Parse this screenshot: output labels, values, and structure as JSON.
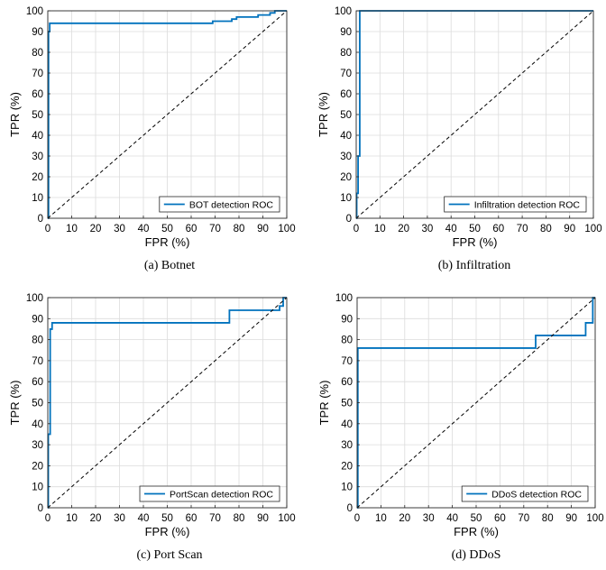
{
  "chart_data": [
    {
      "type": "line",
      "caption": "(a) Botnet",
      "xlabel": "FPR (%)",
      "ylabel": "TPR (%)",
      "xlim": [
        0,
        100
      ],
      "ylim": [
        0,
        100
      ],
      "xticks": [
        0,
        10,
        20,
        30,
        40,
        50,
        60,
        70,
        80,
        90,
        100
      ],
      "yticks": [
        0,
        10,
        20,
        30,
        40,
        50,
        60,
        70,
        80,
        90,
        100
      ],
      "grid": true,
      "legend_position": "bottom-right",
      "series": [
        {
          "name": "BOT detection ROC",
          "color": "#0072bd",
          "x": [
            0,
            0.3,
            0.3,
            0.8,
            0.8,
            69,
            69,
            77,
            77,
            79,
            79,
            88,
            88,
            93,
            93,
            95,
            95,
            100
          ],
          "y": [
            0,
            0,
            90,
            90,
            94,
            94,
            95,
            95,
            96,
            96,
            97,
            97,
            98,
            98,
            99,
            99,
            100,
            100
          ]
        },
        {
          "name": "",
          "color": "#000000",
          "dashed": true,
          "x": [
            0,
            100
          ],
          "y": [
            0,
            100
          ]
        }
      ]
    },
    {
      "type": "line",
      "caption": "(b) Infiltration",
      "xlabel": "FPR (%)",
      "ylabel": "TPR (%)",
      "xlim": [
        0,
        100
      ],
      "ylim": [
        0,
        100
      ],
      "xticks": [
        0,
        10,
        20,
        30,
        40,
        50,
        60,
        70,
        80,
        90,
        100
      ],
      "yticks": [
        0,
        10,
        20,
        30,
        40,
        50,
        60,
        70,
        80,
        90,
        100
      ],
      "grid": true,
      "legend_position": "bottom-right",
      "series": [
        {
          "name": "Infiltration detection ROC",
          "color": "#0072bd",
          "x": [
            0,
            0.2,
            0.2,
            0.8,
            0.8,
            1.5,
            1.5,
            100
          ],
          "y": [
            0,
            0,
            12,
            12,
            30,
            30,
            100,
            100
          ]
        },
        {
          "name": "",
          "color": "#000000",
          "dashed": true,
          "x": [
            0,
            100
          ],
          "y": [
            0,
            100
          ]
        }
      ]
    },
    {
      "type": "line",
      "caption": "(c) Port Scan",
      "xlabel": "FPR (%)",
      "ylabel": "TPR (%)",
      "xlim": [
        0,
        100
      ],
      "ylim": [
        0,
        100
      ],
      "xticks": [
        0,
        10,
        20,
        30,
        40,
        50,
        60,
        70,
        80,
        90,
        100
      ],
      "yticks": [
        0,
        10,
        20,
        30,
        40,
        50,
        60,
        70,
        80,
        90,
        100
      ],
      "grid": true,
      "legend_position": "bottom-right",
      "series": [
        {
          "name": "PortScan detection ROC",
          "color": "#0072bd",
          "x": [
            0,
            0.2,
            0.2,
            1,
            1,
            1.8,
            1.8,
            76,
            76,
            97,
            97,
            98.5,
            98.5,
            100
          ],
          "y": [
            0,
            0,
            35,
            35,
            85,
            85,
            88,
            88,
            94,
            94,
            96,
            96,
            100,
            100
          ]
        },
        {
          "name": "",
          "color": "#000000",
          "dashed": true,
          "x": [
            0,
            100
          ],
          "y": [
            0,
            100
          ]
        }
      ]
    },
    {
      "type": "line",
      "caption": "(d) DDoS",
      "xlabel": "FPR (%)",
      "ylabel": "TPR (%)",
      "xlim": [
        0,
        100
      ],
      "ylim": [
        0,
        100
      ],
      "xticks": [
        0,
        10,
        20,
        30,
        40,
        50,
        60,
        70,
        80,
        90,
        100
      ],
      "yticks": [
        0,
        10,
        20,
        30,
        40,
        50,
        60,
        70,
        80,
        90,
        100
      ],
      "grid": true,
      "legend_position": "bottom-right",
      "series": [
        {
          "name": "DDoS detection ROC",
          "color": "#0072bd",
          "x": [
            0,
            0.3,
            0.3,
            75,
            75,
            96,
            96,
            99,
            99,
            100
          ],
          "y": [
            0,
            0,
            76,
            76,
            82,
            82,
            88,
            88,
            100,
            100
          ]
        },
        {
          "name": "",
          "color": "#000000",
          "dashed": true,
          "x": [
            0,
            100
          ],
          "y": [
            0,
            100
          ]
        }
      ]
    }
  ]
}
